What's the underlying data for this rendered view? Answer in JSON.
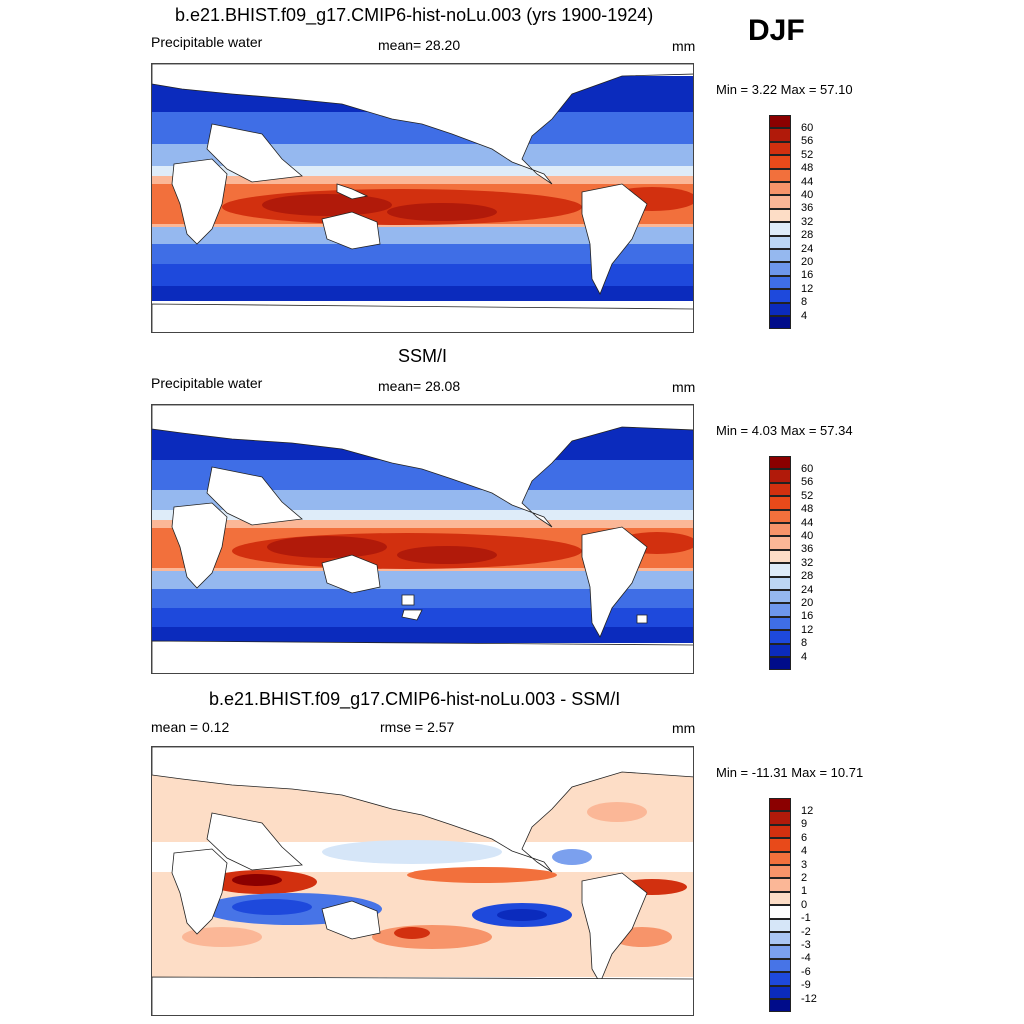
{
  "season": "DJF",
  "panels": [
    {
      "title": "b.e21.BHIST.f09_g17.CMIP6-hist-noLu.003 (yrs 1900-1924)",
      "left_label": "Precipitable water",
      "center_label": "mean=  28.20",
      "units": "mm",
      "minmax": "Min =   3.22 Max =  57.10",
      "colorbar": {
        "labels": [
          "60",
          "56",
          "52",
          "48",
          "44",
          "40",
          "36",
          "32",
          "28",
          "24",
          "20",
          "16",
          "12",
          "8",
          "4"
        ],
        "colors": [
          "#8b0000",
          "#b11a0a",
          "#d2300f",
          "#e84a1a",
          "#f2703c",
          "#f7946a",
          "#fbb797",
          "#fdddc6",
          "#deecf9",
          "#bcd6f4",
          "#95b8ef",
          "#6e97ec",
          "#3f6ee6",
          "#1e49dc",
          "#0b2bbd",
          "#000c8a"
        ]
      }
    },
    {
      "title": "SSM/I",
      "left_label": "Precipitable water",
      "center_label": "mean=  28.08",
      "units": "mm",
      "minmax": "Min =   4.03 Max =  57.34",
      "colorbar": {
        "labels": [
          "60",
          "56",
          "52",
          "48",
          "44",
          "40",
          "36",
          "32",
          "28",
          "24",
          "20",
          "16",
          "12",
          "8",
          "4"
        ],
        "colors": [
          "#8b0000",
          "#b11a0a",
          "#d2300f",
          "#e84a1a",
          "#f2703c",
          "#f7946a",
          "#fbb797",
          "#fdddc6",
          "#deecf9",
          "#bcd6f4",
          "#95b8ef",
          "#6e97ec",
          "#3f6ee6",
          "#1e49dc",
          "#0b2bbd",
          "#000c8a"
        ]
      }
    },
    {
      "title": "b.e21.BHIST.f09_g17.CMIP6-hist-noLu.003 - SSM/I",
      "left_label": "mean =   0.12",
      "center_label": "rmse =   2.57",
      "units": "mm",
      "minmax": "Min = -11.31 Max =  10.71",
      "colorbar": {
        "labels": [
          "12",
          "9",
          "6",
          "4",
          "3",
          "2",
          "1",
          "0",
          "-1",
          "-2",
          "-3",
          "-4",
          "-6",
          "-9",
          "-12"
        ],
        "colors": [
          "#8b0000",
          "#b11a0a",
          "#d2300f",
          "#e84a1a",
          "#f2703c",
          "#f7946a",
          "#fbb797",
          "#fdddc6",
          "#ffffff",
          "#d6e6f8",
          "#aac5f2",
          "#7ba0ee",
          "#4774e7",
          "#1e49dc",
          "#0b2bbd",
          "#000c8a"
        ]
      }
    }
  ]
}
